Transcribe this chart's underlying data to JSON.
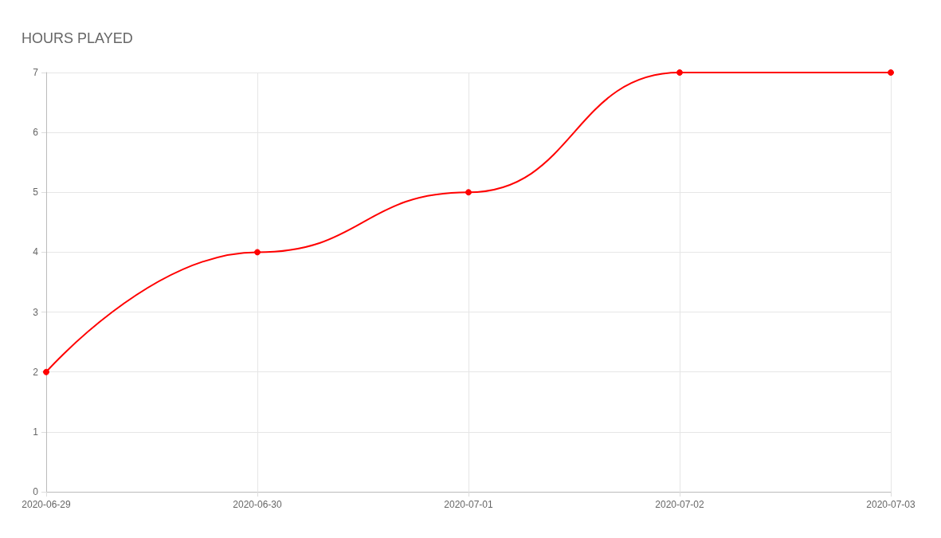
{
  "chart_data": {
    "type": "line",
    "title": "HOURS PLAYED",
    "categories": [
      "2020-06-29",
      "2020-06-30",
      "2020-07-01",
      "2020-07-02",
      "2020-07-03"
    ],
    "series": [
      {
        "color": "#ff0000",
        "values": [
          2,
          4,
          5,
          7,
          7
        ]
      }
    ],
    "ylim": [
      0,
      7
    ],
    "yticks": [
      0,
      1,
      2,
      3,
      4,
      5,
      6,
      7
    ],
    "grid": true,
    "marker": "circle",
    "line_style": "solid"
  }
}
